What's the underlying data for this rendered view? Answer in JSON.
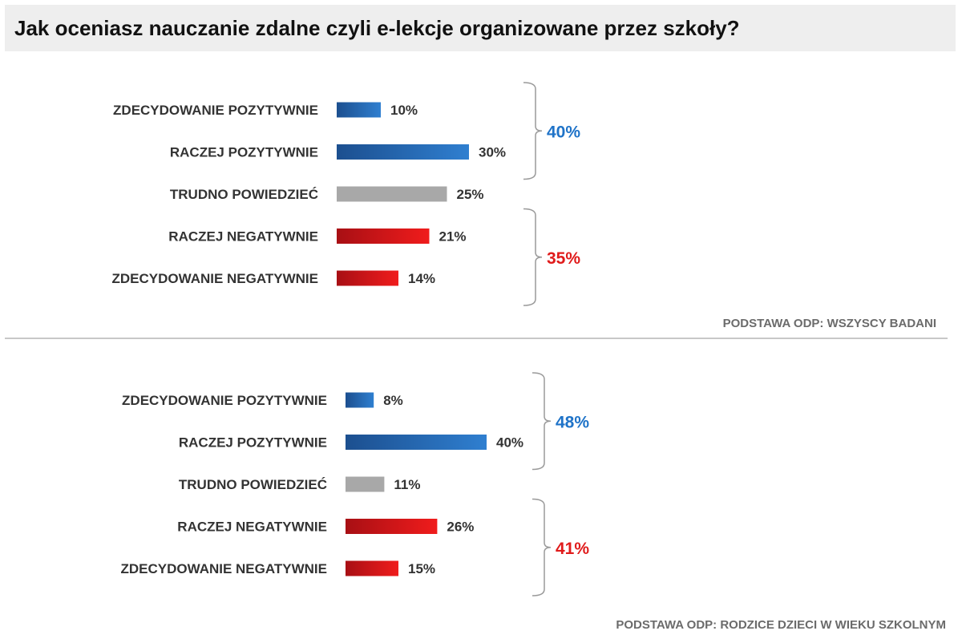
{
  "title": "Jak oceniasz nauczanie zdalne czyli e-lekcje organizowane przez szkoły?",
  "colors": {
    "positive_dark": "#1c4f8f",
    "positive_light": "#2f7fd0",
    "neutral": "#a8a8a8",
    "negative_dark": "#a80f14",
    "negative_light": "#f01c1c",
    "positive_sum": "#1f73c8",
    "negative_sum": "#e01b1b"
  },
  "chart_data": [
    {
      "type": "bar",
      "orientation": "horizontal",
      "categories": [
        "ZDECYDOWANIE POZYTYWNIE",
        "RACZEJ POZYTYWNIE",
        "TRUDNO POWIEDZIEĆ",
        "RACZEJ NEGATYWNIE",
        "ZDECYDOWANIE NEGATYWNIE"
      ],
      "values": [
        10,
        30,
        25,
        21,
        14
      ],
      "value_labels": [
        "10%",
        "30%",
        "25%",
        "21%",
        "14%"
      ],
      "kinds": [
        "positive",
        "positive",
        "neutral",
        "negative",
        "negative"
      ],
      "groups": [
        {
          "name": "positive",
          "members": [
            0,
            1
          ],
          "label": "40%"
        },
        {
          "name": "negative",
          "members": [
            3,
            4
          ],
          "label": "35%"
        }
      ],
      "footnote": "PODSTAWA ODP: WSZYSCY BADANI"
    },
    {
      "type": "bar",
      "orientation": "horizontal",
      "categories": [
        "ZDECYDOWANIE POZYTYWNIE",
        "RACZEJ POZYTYWNIE",
        "TRUDNO POWIEDZIEĆ",
        "RACZEJ NEGATYWNIE",
        "ZDECYDOWANIE NEGATYWNIE"
      ],
      "values": [
        8,
        40,
        11,
        26,
        15
      ],
      "value_labels": [
        "8%",
        "40%",
        "11%",
        "26%",
        "15%"
      ],
      "kinds": [
        "positive",
        "positive",
        "neutral",
        "negative",
        "negative"
      ],
      "groups": [
        {
          "name": "positive",
          "members": [
            0,
            1
          ],
          "label": "48%"
        },
        {
          "name": "negative",
          "members": [
            3,
            4
          ],
          "label": "41%"
        }
      ],
      "footnote": "PODSTAWA ODP: RODZICE DZIECI W WIEKU SZKOLNYM"
    }
  ]
}
